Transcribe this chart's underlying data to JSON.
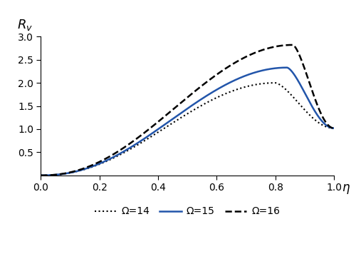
{
  "title_y": "$R_v$",
  "xlabel": "η",
  "xlim": [
    0.0,
    1.0
  ],
  "ylim": [
    0.0,
    3.0
  ],
  "xticks": [
    0.0,
    0.2,
    0.4,
    0.6,
    0.8,
    1.0
  ],
  "yticks": [
    0.5,
    1.0,
    1.5,
    2.0,
    2.5,
    3.0
  ],
  "legend": [
    {
      "label": "Ω=14",
      "color": "#000000",
      "linestyle": "dotted",
      "linewidth": 1.5
    },
    {
      "label": "Ω=15",
      "color": "#2255aa",
      "linestyle": "solid",
      "linewidth": 1.8
    },
    {
      "label": "Ω=16",
      "color": "#000000",
      "linestyle": "dashed",
      "linewidth": 1.8
    }
  ],
  "background": "#ffffff",
  "curves": [
    {
      "peak_eta": 0.8,
      "peak_val": 2.0,
      "end_val": 1.02,
      "shape_rise": 2.2,
      "shape_fall": 1.5
    },
    {
      "peak_eta": 0.84,
      "peak_val": 2.33,
      "end_val": 1.02,
      "shape_rise": 2.2,
      "shape_fall": 1.5
    },
    {
      "peak_eta": 0.86,
      "peak_val": 2.82,
      "end_val": 1.02,
      "shape_rise": 2.2,
      "shape_fall": 1.5
    }
  ]
}
